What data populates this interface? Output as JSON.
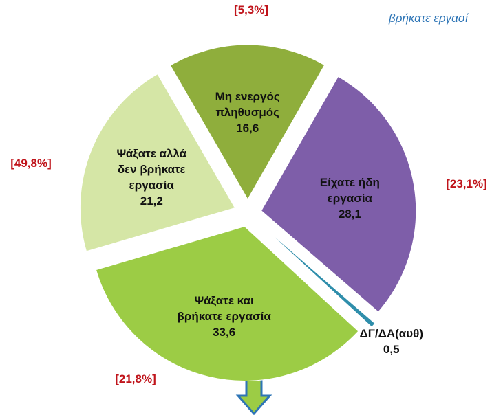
{
  "chart_data": {
    "type": "pie",
    "note": "βρήκατε εργασί",
    "categories": [
      "Μη ενεργός πληθυσμός",
      "Είχατε ήδη εργασία",
      "ΔΓ/ΔΑ(αυθ)",
      "Ψάξατε και βρήκατε εργασία",
      "Ψάξατε αλλά δεν βρήκατε εργασία"
    ],
    "values": [
      16.6,
      28.1,
      0.5,
      33.6,
      21.2
    ],
    "value_labels": [
      "16,6",
      "28,1",
      "0,5",
      "33,6",
      "21,2"
    ],
    "colors": [
      "#8fae3c",
      "#7e5ea9",
      "#2f8eab",
      "#9ccc45",
      "#d5e6a6"
    ],
    "annotations": [
      "[5,3%]",
      "[23,1%]",
      "[21,8%]",
      "[49,8%]"
    ]
  }
}
